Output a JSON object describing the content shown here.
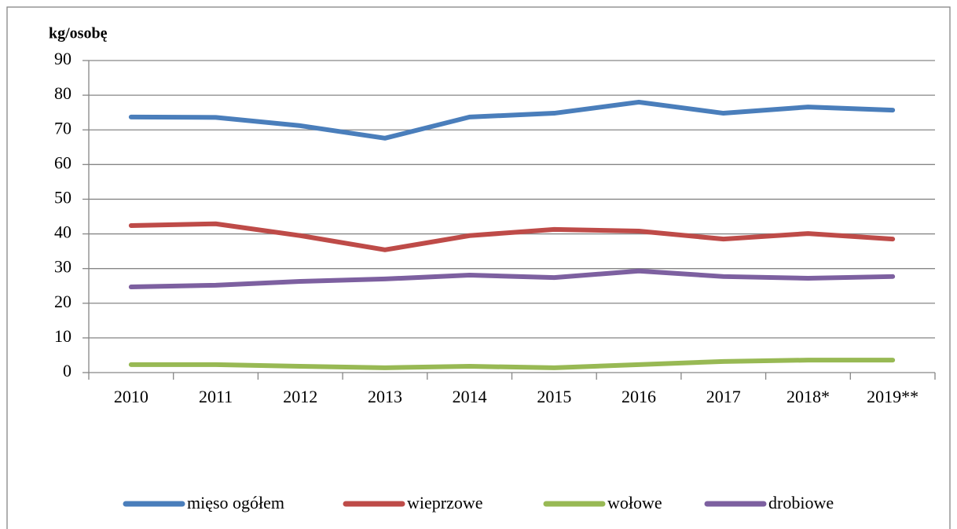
{
  "chart_data": {
    "type": "line",
    "y_label": "kg/osobę",
    "categories": [
      "2010",
      "2011",
      "2012",
      "2013",
      "2014",
      "2015",
      "2016",
      "2017",
      "2018*",
      "2019**"
    ],
    "series": [
      {
        "name": "mięso ogółem",
        "color": "#4a7ebb",
        "values": [
          73.7,
          73.6,
          71.2,
          67.6,
          73.7,
          74.8,
          78.0,
          74.8,
          76.6,
          75.7
        ]
      },
      {
        "name": "wieprzowe",
        "color": "#be4b48",
        "values": [
          42.4,
          42.9,
          39.5,
          35.4,
          39.5,
          41.3,
          40.8,
          38.5,
          40.1,
          38.5
        ]
      },
      {
        "name": "wołowe",
        "color": "#98b954",
        "values": [
          2.3,
          2.3,
          1.8,
          1.4,
          1.8,
          1.4,
          2.3,
          3.2,
          3.6,
          3.6
        ]
      },
      {
        "name": "drobiowe",
        "color": "#7d60a0",
        "values": [
          24.7,
          25.2,
          26.3,
          27.0,
          28.1,
          27.4,
          29.3,
          27.7,
          27.2,
          27.7
        ]
      }
    ],
    "ylim": [
      0,
      90
    ],
    "yticks": [
      0,
      10,
      20,
      30,
      40,
      50,
      60,
      70,
      80,
      90
    ],
    "grid": true,
    "legend": "bottom"
  }
}
